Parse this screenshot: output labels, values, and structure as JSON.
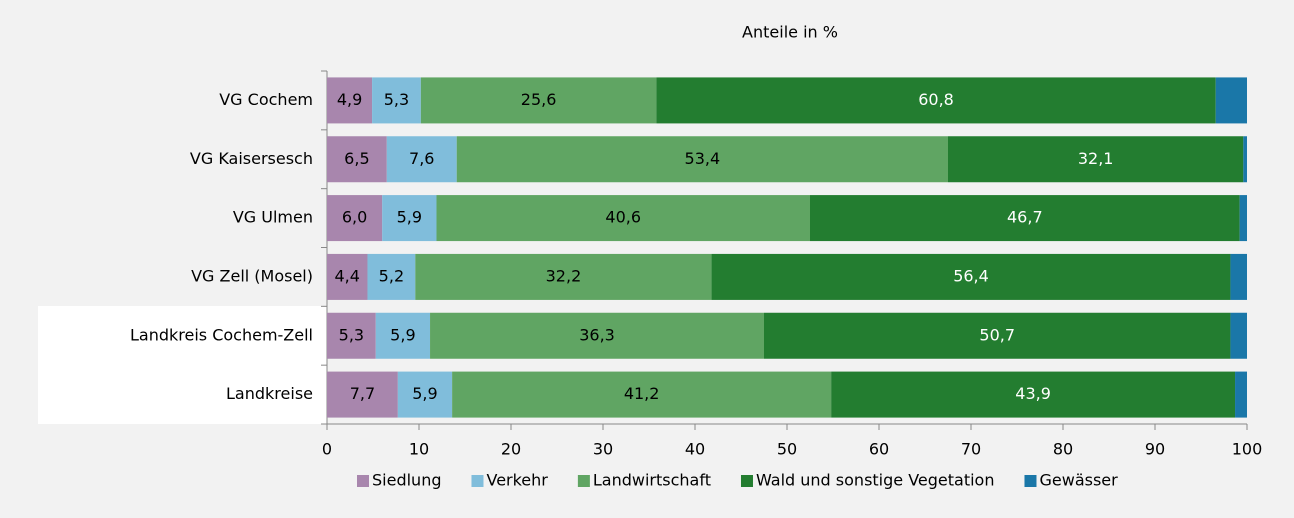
{
  "chart_data": {
    "type": "stacked-bar-horizontal",
    "title": "Anteile in %",
    "categories": [
      "VG Cochem",
      "VG Kaisersesch",
      "VG Ulmen",
      "VG Zell (Mosel)",
      "Landkreis Cochem-Zell",
      "Landkreise"
    ],
    "series": [
      {
        "name": "Siedlung",
        "color": "#a886ad",
        "label_color": "#000000",
        "values": [
          4.9,
          6.5,
          6.0,
          4.4,
          5.3,
          7.7
        ],
        "value_labels": [
          "4,9",
          "6,5",
          "6,0",
          "4,4",
          "5,3",
          "7,7"
        ]
      },
      {
        "name": "Verkehr",
        "color": "#80bddb",
        "label_color": "#000000",
        "values": [
          5.3,
          7.6,
          5.9,
          5.2,
          5.9,
          5.9
        ],
        "value_labels": [
          "5,3",
          "7,6",
          "5,9",
          "5,2",
          "5,9",
          "5,9"
        ]
      },
      {
        "name": "Landwirtschaft",
        "color": "#60a563",
        "label_color": "#000000",
        "values": [
          25.6,
          53.4,
          40.6,
          32.2,
          36.3,
          41.2
        ],
        "value_labels": [
          "25,6",
          "53,4",
          "40,6",
          "32,2",
          "36,3",
          "41,2"
        ]
      },
      {
        "name": "Wald und sonstige Vegetation",
        "color": "#237d30",
        "label_color": "#ffffff",
        "values": [
          60.8,
          32.1,
          46.7,
          56.4,
          50.7,
          43.9
        ],
        "value_labels": [
          "60,8",
          "32,1",
          "46,7",
          "56,4",
          "50,7",
          "43,9"
        ]
      },
      {
        "name": "Gewässer",
        "color": "#1a77a8",
        "values": [
          3.4,
          0.4,
          0.8,
          1.8,
          1.8,
          1.3
        ]
      }
    ],
    "xlim": [
      0,
      100
    ],
    "xticks": [
      0,
      10,
      20,
      30,
      40,
      50,
      60,
      70,
      80,
      90,
      100
    ],
    "legend": "bottom"
  }
}
